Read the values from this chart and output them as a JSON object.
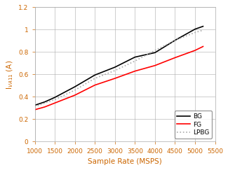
{
  "title": "",
  "xlabel": "Sample Rate (MSPS)",
  "ylabel": "I$_{VA11}$ (A)",
  "xlim": [
    1000,
    5500
  ],
  "ylim": [
    0,
    1.2
  ],
  "xticks": [
    1000,
    1500,
    2000,
    2500,
    3000,
    3500,
    4000,
    4500,
    5000,
    5500
  ],
  "yticks": [
    0,
    0.2,
    0.4,
    0.6,
    0.8,
    1.0,
    1.2
  ],
  "lines": {
    "BG": {
      "x": [
        1000,
        1250,
        1500,
        2000,
        2500,
        3000,
        3500,
        4000,
        4500,
        5000,
        5200
      ],
      "y": [
        0.325,
        0.355,
        0.395,
        0.49,
        0.595,
        0.665,
        0.755,
        0.795,
        0.905,
        1.005,
        1.03
      ],
      "color": "#000000",
      "linewidth": 1.2,
      "linestyle": "-"
    },
    "FG": {
      "x": [
        1000,
        1250,
        1500,
        2000,
        2500,
        3000,
        3500,
        4000,
        4500,
        5000,
        5200
      ],
      "y": [
        0.285,
        0.31,
        0.345,
        0.415,
        0.505,
        0.565,
        0.63,
        0.68,
        0.75,
        0.815,
        0.85
      ],
      "color": "#ff0000",
      "linewidth": 1.2,
      "linestyle": "-"
    },
    "LPBG": {
      "x": [
        1000,
        1250,
        1500,
        2000,
        2500,
        3000,
        3500,
        4000,
        4500,
        5000,
        5200
      ],
      "y": [
        0.31,
        0.345,
        0.375,
        0.46,
        0.565,
        0.635,
        0.72,
        0.815,
        0.905,
        0.975,
        0.995
      ],
      "color": "#aaaaaa",
      "linewidth": 1.2,
      "linestyle": ":"
    }
  },
  "legend_loc": "lower right",
  "label_color": "#cc6600",
  "tick_color": "#cc6600",
  "spine_color": "#aaaaaa",
  "grid_color": "#aaaaaa",
  "figsize": [
    3.25,
    2.43
  ],
  "dpi": 100
}
